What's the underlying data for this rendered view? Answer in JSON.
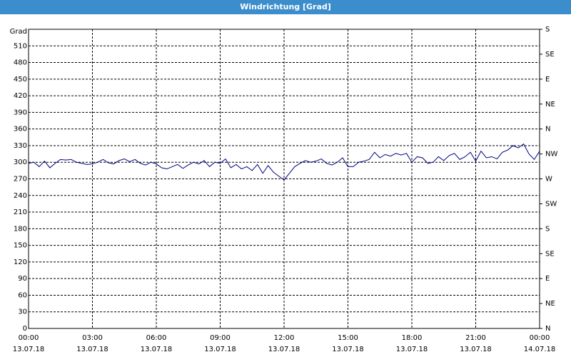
{
  "chart_data": {
    "type": "line",
    "title": "Windrichtung [Grad]",
    "y_label": "Grad",
    "color": "#000080",
    "grid": true,
    "xlim": [
      0,
      24
    ],
    "xticks": [
      {
        "value": 0,
        "label": "00:00"
      },
      {
        "value": 3,
        "label": "03:00"
      },
      {
        "value": 6,
        "label": "06:00"
      },
      {
        "value": 9,
        "label": "09:00"
      },
      {
        "value": 12,
        "label": "12:00"
      },
      {
        "value": 15,
        "label": "15:00"
      },
      {
        "value": 18,
        "label": "18:00"
      },
      {
        "value": 21,
        "label": "21:00"
      },
      {
        "value": 24,
        "label": "00:00"
      }
    ],
    "xtick_dates": [
      "13.07.18",
      "13.07.18",
      "13.07.18",
      "13.07.18",
      "13.07.18",
      "13.07.18",
      "13.07.18",
      "13.07.18",
      "14.07.18"
    ],
    "ylim": [
      0,
      540
    ],
    "yticks": [
      0,
      30,
      60,
      90,
      120,
      150,
      180,
      210,
      240,
      270,
      300,
      330,
      360,
      390,
      420,
      450,
      480,
      510
    ],
    "y2lim": [
      0,
      540
    ],
    "y2ticks": [
      {
        "value": 0,
        "label": "N"
      },
      {
        "value": 45,
        "label": "NE"
      },
      {
        "value": 90,
        "label": "E"
      },
      {
        "value": 135,
        "label": "SE"
      },
      {
        "value": 180,
        "label": "S"
      },
      {
        "value": 225,
        "label": "SW"
      },
      {
        "value": 270,
        "label": "W"
      },
      {
        "value": 315,
        "label": "NW"
      },
      {
        "value": 360,
        "label": "N"
      },
      {
        "value": 405,
        "label": "NE"
      },
      {
        "value": 450,
        "label": "E"
      },
      {
        "value": 495,
        "label": "SE"
      },
      {
        "value": 540,
        "label": "S"
      }
    ],
    "x": [
      0,
      0.25,
      0.5,
      0.75,
      1,
      1.25,
      1.5,
      1.75,
      2,
      2.25,
      2.5,
      2.75,
      3,
      3.25,
      3.5,
      3.75,
      4,
      4.25,
      4.5,
      4.75,
      5,
      5.25,
      5.5,
      5.75,
      6,
      6.25,
      6.5,
      6.75,
      7,
      7.25,
      7.5,
      7.75,
      8,
      8.25,
      8.5,
      8.75,
      9,
      9.25,
      9.5,
      9.75,
      10,
      10.25,
      10.5,
      10.75,
      11,
      11.25,
      11.5,
      11.75,
      12,
      12.25,
      12.5,
      12.75,
      13,
      13.25,
      13.5,
      13.75,
      14,
      14.25,
      14.5,
      14.75,
      15,
      15.25,
      15.5,
      15.75,
      16,
      16.25,
      16.5,
      16.75,
      17,
      17.25,
      17.5,
      17.75,
      18,
      18.25,
      18.5,
      18.75,
      19,
      19.25,
      19.5,
      19.75,
      20,
      20.25,
      20.5,
      20.75,
      21,
      21.25,
      21.5,
      21.75,
      22,
      22.25,
      22.5,
      22.75,
      23,
      23.25,
      23.5,
      23.75,
      24
    ],
    "values": [
      298,
      300,
      292,
      302,
      290,
      298,
      305,
      304,
      305,
      300,
      298,
      296,
      297,
      300,
      305,
      299,
      297,
      303,
      306,
      301,
      305,
      298,
      295,
      300,
      297,
      290,
      288,
      292,
      296,
      289,
      295,
      300,
      297,
      303,
      292,
      300,
      298,
      306,
      290,
      296,
      288,
      292,
      285,
      296,
      280,
      294,
      282,
      275,
      268,
      280,
      292,
      298,
      303,
      300,
      302,
      306,
      298,
      295,
      300,
      308,
      292,
      292,
      300,
      302,
      305,
      318,
      308,
      314,
      311,
      316,
      313,
      316,
      300,
      310,
      308,
      298,
      300,
      310,
      303,
      312,
      316,
      305,
      310,
      318,
      302,
      320,
      308,
      310,
      306,
      318,
      322,
      330,
      326,
      333,
      315,
      305,
      320
    ]
  }
}
